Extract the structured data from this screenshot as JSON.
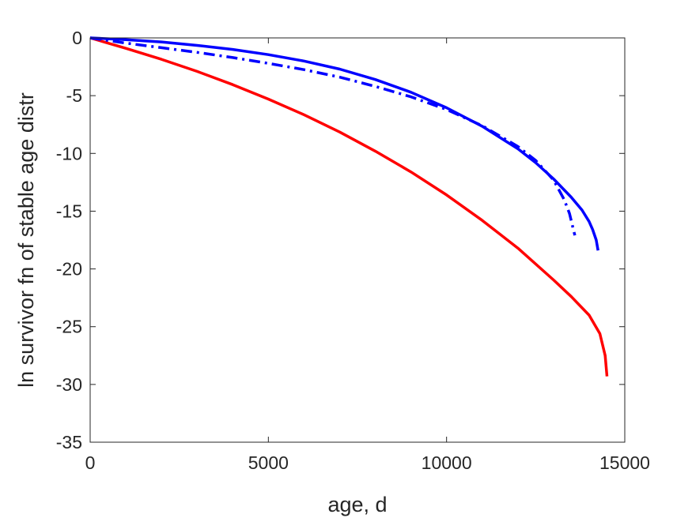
{
  "chart_data": {
    "type": "line",
    "title": "",
    "xlabel": "age, d",
    "ylabel": "ln survivor fn of stable age distr",
    "xlim": [
      0,
      15000
    ],
    "ylim": [
      -35,
      0
    ],
    "xticks": [
      0,
      5000,
      10000,
      15000
    ],
    "yticks": [
      0,
      -5,
      -10,
      -15,
      -20,
      -25,
      -30,
      -35
    ],
    "grid": false,
    "legend": "none",
    "series": [
      {
        "color": "#ff0000",
        "style": "solid",
        "x": [
          0,
          1000,
          2000,
          3000,
          4000,
          5000,
          6000,
          7000,
          8000,
          9000,
          10000,
          11000,
          12000,
          13000,
          13500,
          14000,
          14300,
          14450,
          14500
        ],
        "y": [
          0,
          -0.9,
          -1.85,
          -2.9,
          -4.05,
          -5.3,
          -6.65,
          -8.15,
          -9.8,
          -11.6,
          -13.6,
          -15.8,
          -18.2,
          -20.95,
          -22.4,
          -24.0,
          -25.6,
          -27.5,
          -29.3
        ]
      },
      {
        "color": "#0000ff",
        "style": "solid",
        "x": [
          0,
          1000,
          2000,
          3000,
          4000,
          5000,
          6000,
          7000,
          8000,
          9000,
          10000,
          11000,
          12000,
          12500,
          13000,
          13500,
          13800,
          14000,
          14100,
          14200,
          14250
        ],
        "y": [
          0,
          -0.15,
          -0.35,
          -0.65,
          -1.0,
          -1.45,
          -2.0,
          -2.7,
          -3.6,
          -4.7,
          -6.05,
          -7.65,
          -9.6,
          -10.8,
          -12.2,
          -13.8,
          -14.9,
          -15.9,
          -16.6,
          -17.5,
          -18.4
        ]
      },
      {
        "color": "#0000ff",
        "style": "dashdot",
        "x": [
          0,
          1000,
          2000,
          3000,
          4000,
          5000,
          6000,
          7000,
          8000,
          9000,
          10000,
          11000,
          12000,
          12500,
          13000,
          13300,
          13450,
          13550,
          13600
        ],
        "y": [
          0,
          -0.45,
          -0.85,
          -1.25,
          -1.7,
          -2.2,
          -2.75,
          -3.4,
          -4.2,
          -5.1,
          -6.2,
          -7.6,
          -9.4,
          -10.6,
          -12.3,
          -14.0,
          -15.2,
          -16.5,
          -17.1
        ]
      }
    ]
  }
}
